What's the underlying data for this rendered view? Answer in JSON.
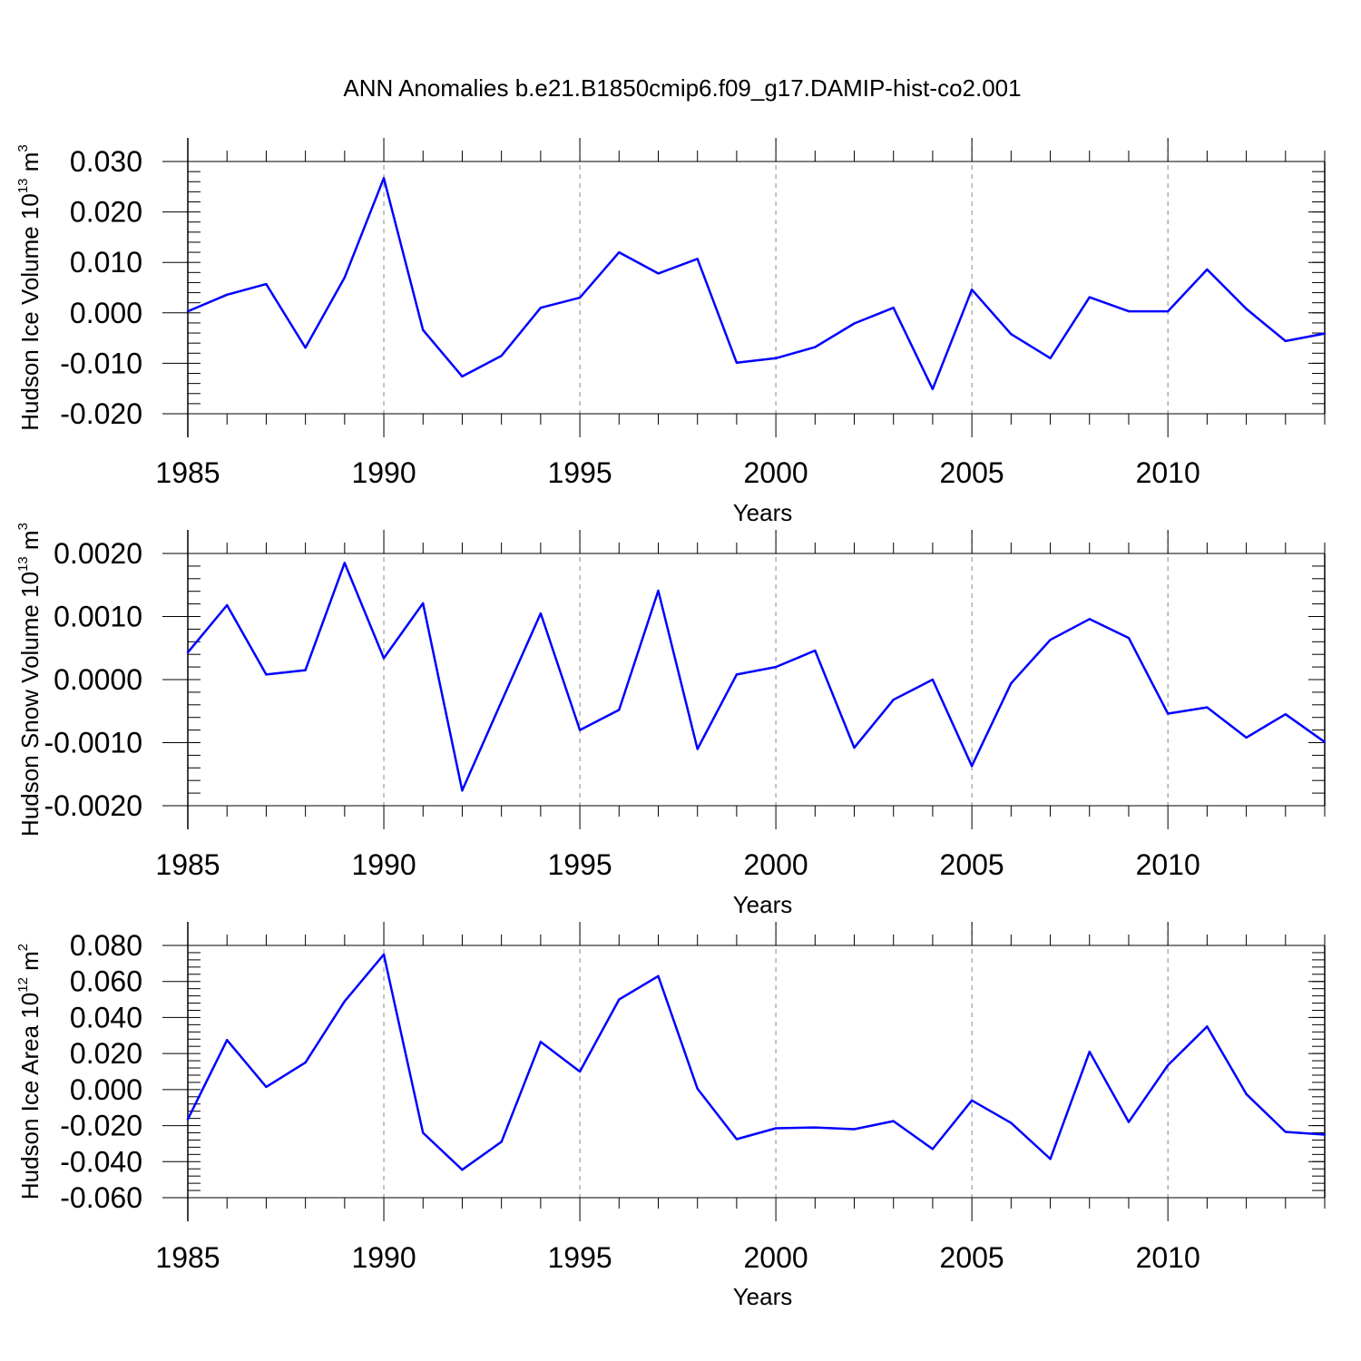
{
  "title": "ANN Anomalies b.e21.B1850cmip6.f09_g17.DAMIP-hist-co2.001",
  "colors": {
    "line": "#0000ff",
    "axis": "#000000",
    "grid": "#888888"
  },
  "chart_data": [
    {
      "type": "line",
      "xlabel": "Years",
      "ylabel": {
        "text": "Hudson Ice Volume 10",
        "exp": "13",
        "unit": " m",
        "unit_exp": "3"
      },
      "xlim": [
        1985,
        2014
      ],
      "ylim": [
        -0.02,
        0.03
      ],
      "yticks": [
        -0.02,
        -0.01,
        0.0,
        0.01,
        0.02,
        0.03
      ],
      "ytick_labels": [
        "-0.020",
        "-0.010",
        "0.000",
        "0.010",
        "0.020",
        "0.030"
      ],
      "yminor": 0.002,
      "xticks": [
        1985,
        1990,
        1995,
        2000,
        2005,
        2010
      ],
      "xtick_labels": [
        "1985",
        "1990",
        "1995",
        "2000",
        "2005",
        "2010"
      ],
      "grid_x": [
        1990,
        1995,
        2000,
        2005,
        2010
      ],
      "x": [
        1985,
        1986,
        1987,
        1988,
        1989,
        1990,
        1991,
        1992,
        1993,
        1994,
        1995,
        1996,
        1997,
        1998,
        1999,
        2000,
        2001,
        2002,
        2003,
        2004,
        2005,
        2006,
        2007,
        2008,
        2009,
        2010,
        2011,
        2012,
        2013,
        2014
      ],
      "values": [
        0.0003,
        0.0036,
        0.0057,
        -0.0069,
        0.007,
        0.0267,
        -0.0034,
        -0.0126,
        -0.0085,
        0.001,
        0.003,
        0.012,
        0.0078,
        0.0107,
        -0.0099,
        -0.009,
        -0.0068,
        -0.0021,
        0.001,
        -0.0151,
        0.0046,
        -0.0042,
        -0.009,
        0.0031,
        0.0003,
        0.0003,
        0.0086,
        0.0008,
        -0.0056,
        -0.0041
      ]
    },
    {
      "type": "line",
      "xlabel": "Years",
      "ylabel": {
        "text": "Hudson Snow Volume 10",
        "exp": "13",
        "unit": " m",
        "unit_exp": "3"
      },
      "xlim": [
        1985,
        2014
      ],
      "ylim": [
        -0.002,
        0.002
      ],
      "yticks": [
        -0.002,
        -0.001,
        0.0,
        0.001,
        0.002
      ],
      "ytick_labels": [
        "-0.0020",
        "-0.0010",
        "0.0000",
        "0.0010",
        "0.0020"
      ],
      "yminor": 0.0002,
      "xticks": [
        1985,
        1990,
        1995,
        2000,
        2005,
        2010
      ],
      "xtick_labels": [
        "1985",
        "1990",
        "1995",
        "2000",
        "2005",
        "2010"
      ],
      "grid_x": [
        1990,
        1995,
        2000,
        2005,
        2010
      ],
      "x": [
        1985,
        1986,
        1987,
        1988,
        1989,
        1990,
        1991,
        1992,
        1993,
        1994,
        1995,
        1996,
        1997,
        1998,
        1999,
        2000,
        2001,
        2002,
        2003,
        2004,
        2005,
        2006,
        2007,
        2008,
        2009,
        2010,
        2011,
        2012,
        2013,
        2014
      ],
      "values": [
        0.00043,
        0.00118,
        8e-05,
        0.00015,
        0.00185,
        0.00034,
        0.00121,
        -0.00176,
        -0.00035,
        0.00105,
        -0.0008,
        -0.00048,
        0.00141,
        -0.0011,
        8e-05,
        0.0002,
        0.00046,
        -0.00108,
        -0.00032,
        0.0,
        -0.00137,
        -6e-05,
        0.00063,
        0.00096,
        0.00066,
        -0.00054,
        -0.00044,
        -0.00092,
        -0.00055,
        -0.00099
      ]
    },
    {
      "type": "line",
      "xlabel": "Years",
      "ylabel": {
        "text": "Hudson Ice Area 10",
        "exp": "12",
        "unit": " m",
        "unit_exp": "2"
      },
      "xlim": [
        1985,
        2014
      ],
      "ylim": [
        -0.06,
        0.08
      ],
      "yticks": [
        -0.06,
        -0.04,
        -0.02,
        0.0,
        0.02,
        0.04,
        0.06,
        0.08
      ],
      "ytick_labels": [
        "-0.060",
        "-0.040",
        "-0.020",
        "0.000",
        "0.020",
        "0.040",
        "0.060",
        "0.080"
      ],
      "yminor": 0.004,
      "xticks": [
        1985,
        1990,
        1995,
        2000,
        2005,
        2010
      ],
      "xtick_labels": [
        "1985",
        "1990",
        "1995",
        "2000",
        "2005",
        "2010"
      ],
      "grid_x": [
        1990,
        1995,
        2000,
        2005,
        2010
      ],
      "x": [
        1985,
        1986,
        1987,
        1988,
        1989,
        1990,
        1991,
        1992,
        1993,
        1994,
        1995,
        1996,
        1997,
        1998,
        1999,
        2000,
        2001,
        2002,
        2003,
        2004,
        2005,
        2006,
        2007,
        2008,
        2009,
        2010,
        2011,
        2012,
        2013,
        2014
      ],
      "values": [
        -0.0165,
        0.0275,
        0.0015,
        0.015,
        0.049,
        0.075,
        -0.024,
        -0.0445,
        -0.029,
        0.0265,
        0.01,
        0.05,
        0.063,
        0.0005,
        -0.0275,
        -0.0215,
        -0.021,
        -0.022,
        -0.0175,
        -0.033,
        -0.006,
        -0.0185,
        -0.0385,
        0.021,
        -0.018,
        0.0135,
        0.035,
        -0.0025,
        -0.0235,
        -0.025
      ]
    }
  ]
}
